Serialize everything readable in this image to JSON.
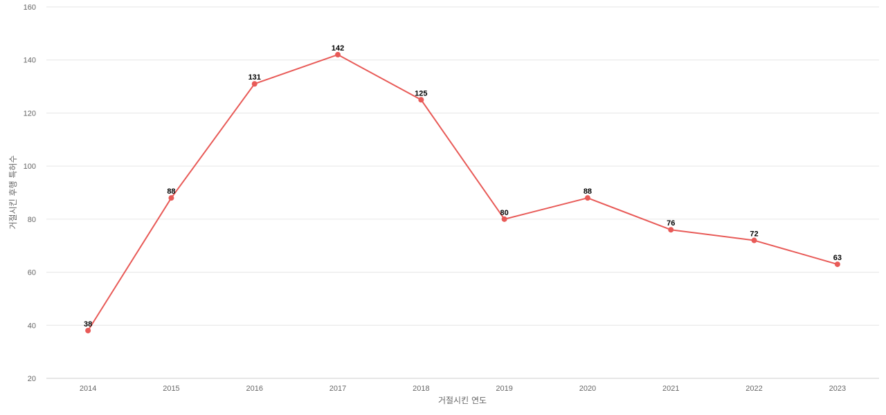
{
  "chart_data": {
    "type": "line",
    "title": "",
    "xlabel": "거절시킨 연도",
    "ylabel": "거절시킨 후행 특허수",
    "categories": [
      "2014",
      "2015",
      "2016",
      "2017",
      "2018",
      "2019",
      "2020",
      "2021",
      "2022",
      "2023"
    ],
    "series": [
      {
        "values": [
          38,
          88,
          131,
          142,
          125,
          80,
          88,
          76,
          72,
          63
        ]
      }
    ],
    "ylim": [
      20,
      160
    ],
    "yticks": [
      20,
      40,
      60,
      80,
      100,
      120,
      140,
      160
    ],
    "grid": true,
    "legend": "none",
    "data_labels": true,
    "colors": {
      "line": "#e85a57",
      "grid": "#e6e6e6",
      "label": "#000000"
    }
  }
}
